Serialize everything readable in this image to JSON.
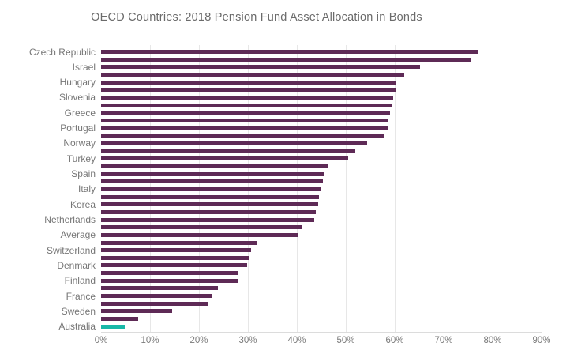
{
  "chart_data": {
    "type": "bar",
    "orientation": "horizontal",
    "title": "OECD Countries: 2018 Pension Fund Asset Allocation in Bonds",
    "xlabel": "",
    "ylabel": "",
    "xlim": [
      0,
      90
    ],
    "x_tick_labels": [
      "0%",
      "10%",
      "20%",
      "30%",
      "40%",
      "50%",
      "60%",
      "70%",
      "80%",
      "90%"
    ],
    "grid": "vertical",
    "legend": "none",
    "bar_color": "#5e2a56",
    "highlight_color": "#19b8a8",
    "note": "Each country shows a pair of bars; Australia is a single highlighted bar",
    "categories": [
      {
        "label": "Czech Republic",
        "values": [
          77.1,
          75.7
        ]
      },
      {
        "label": "Israel",
        "values": [
          65.2,
          61.9
        ]
      },
      {
        "label": "Hungary",
        "values": [
          60.2,
          60.1
        ]
      },
      {
        "label": "Slovenia",
        "values": [
          59.6,
          59.4
        ]
      },
      {
        "label": "Greece",
        "values": [
          59.0,
          58.6
        ]
      },
      {
        "label": "Portugal",
        "values": [
          58.5,
          57.9
        ]
      },
      {
        "label": "Norway",
        "values": [
          54.3,
          52.0
        ]
      },
      {
        "label": "Turkey",
        "values": [
          50.5,
          46.3
        ]
      },
      {
        "label": "Spain",
        "values": [
          45.5,
          45.3
        ]
      },
      {
        "label": "Italy",
        "values": [
          44.9,
          44.5
        ]
      },
      {
        "label": "Korea",
        "values": [
          44.4,
          43.9
        ]
      },
      {
        "label": "Netherlands",
        "values": [
          43.6,
          41.1
        ]
      },
      {
        "label": "Average",
        "values": [
          40.2,
          31.9
        ]
      },
      {
        "label": "Switzerland",
        "values": [
          30.6,
          30.4
        ]
      },
      {
        "label": "Denmark",
        "values": [
          29.9,
          28.1
        ]
      },
      {
        "label": "Finland",
        "values": [
          27.9,
          23.8
        ]
      },
      {
        "label": "France",
        "values": [
          22.5,
          21.7
        ]
      },
      {
        "label": "Sweden",
        "values": [
          14.5,
          7.5
        ]
      },
      {
        "label": "Australia",
        "values": [
          4.9
        ],
        "highlight": true
      }
    ]
  }
}
